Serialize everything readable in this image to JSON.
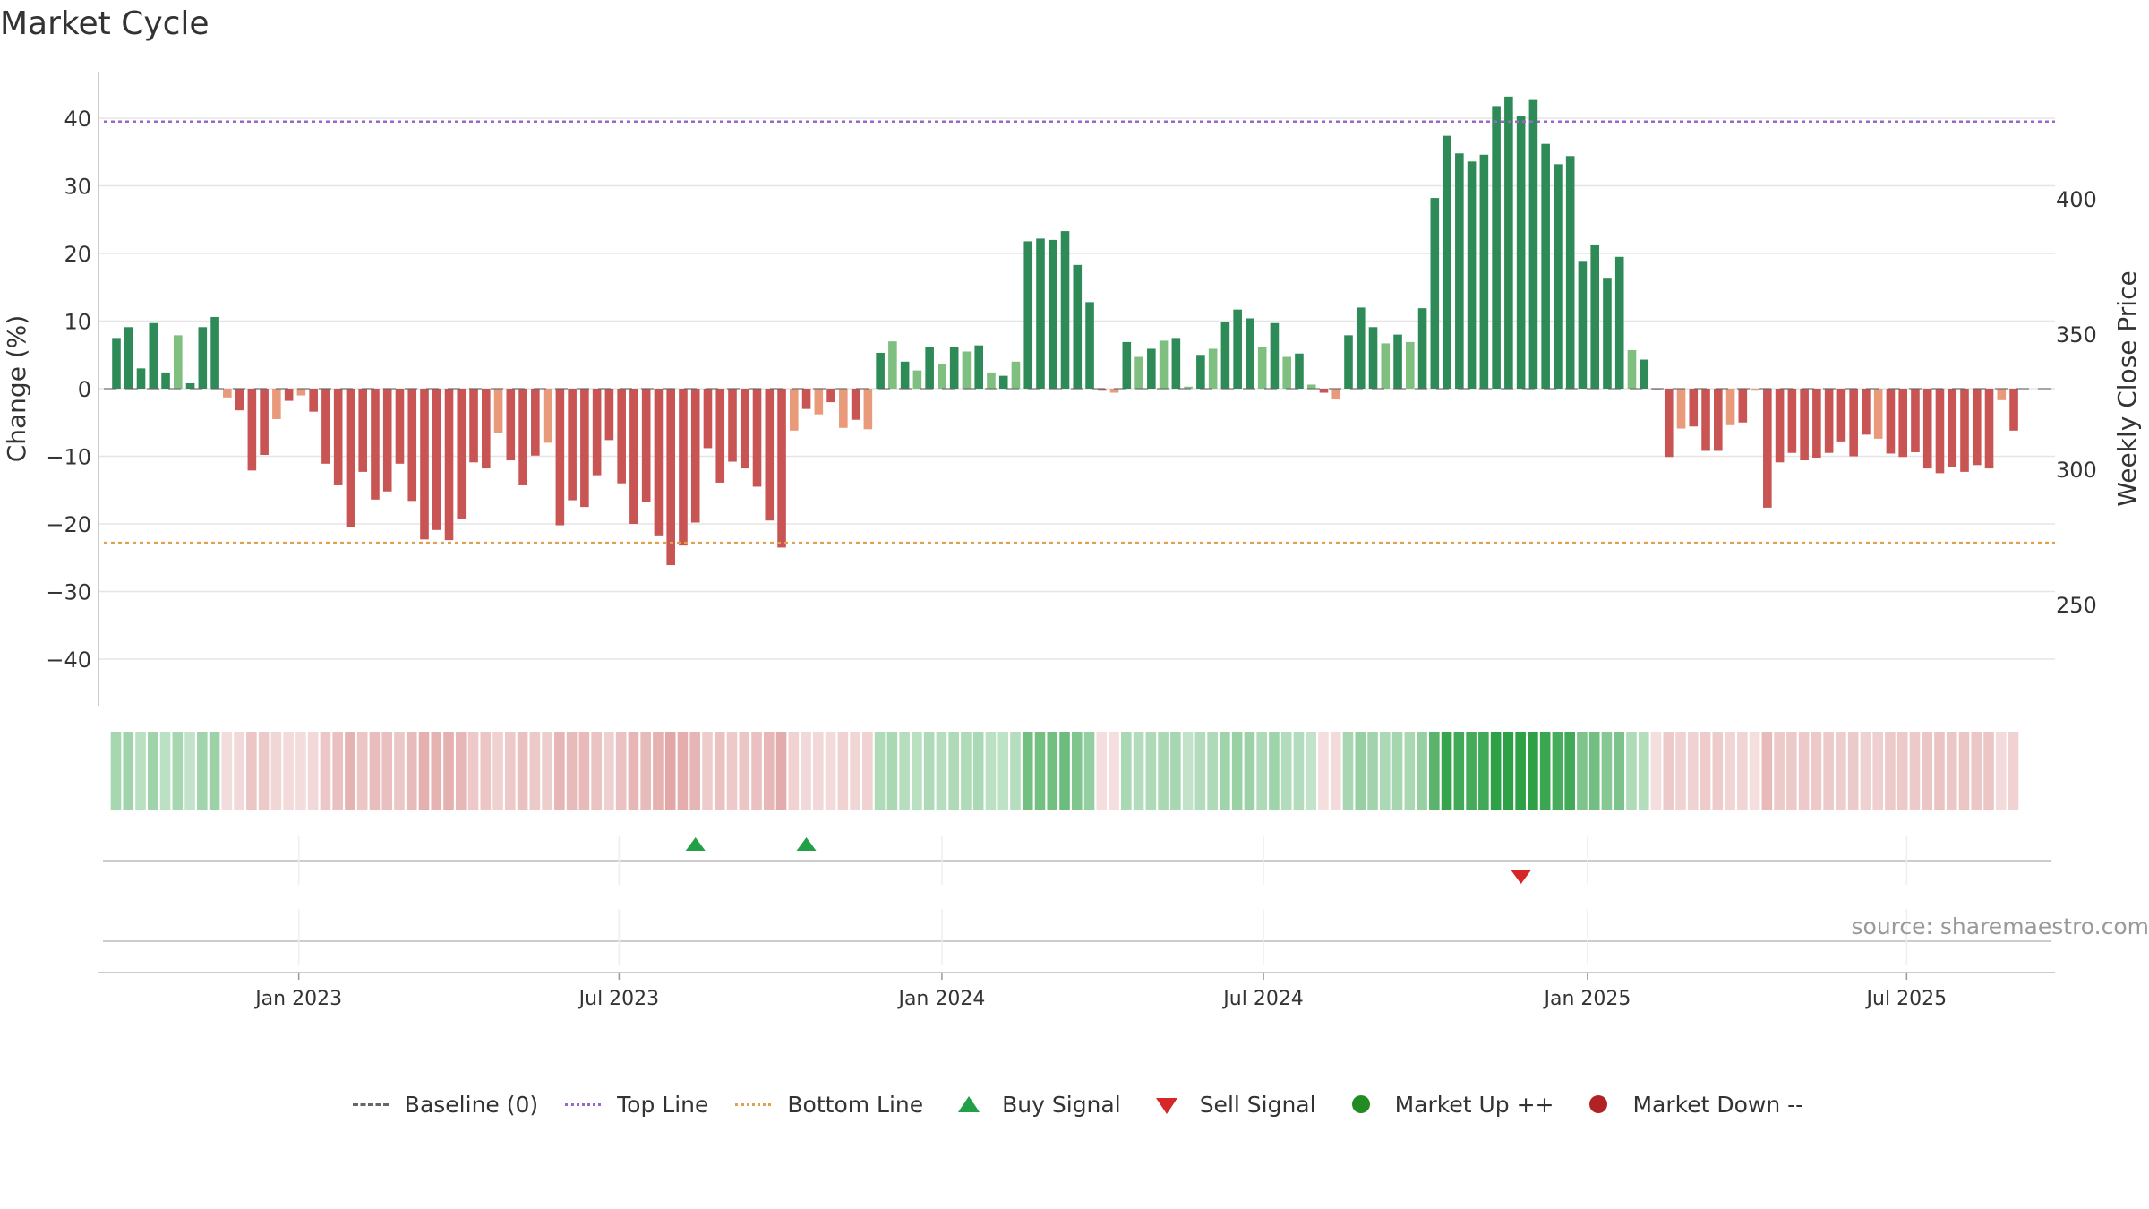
{
  "title": "Market Cycle",
  "source": "source: sharemaestro.com",
  "colors": {
    "green_dark": "#2e8b57",
    "green_light": "#7fbf7f",
    "red_dark": "#c85454",
    "red_light": "#e89a7a",
    "top_line": "#9966cc",
    "bottom_line": "#e0a050",
    "baseline": "#666666",
    "buy": "#22a048",
    "sell": "#d62728",
    "market_up": "#228b22",
    "market_down": "#b22222",
    "grid": "#e5e5e5"
  },
  "legend": [
    {
      "label": "Baseline (0)",
      "symbol": "dash",
      "color": "#666666"
    },
    {
      "label": "Top Line",
      "symbol": "dot-line",
      "color": "#9966cc"
    },
    {
      "label": "Bottom Line",
      "symbol": "dot-line",
      "color": "#e0a050"
    },
    {
      "label": "Buy Signal",
      "symbol": "tri-up",
      "color": "#22a048"
    },
    {
      "label": "Sell Signal",
      "symbol": "tri-down",
      "color": "#d62728"
    },
    {
      "label": "Market Up ++",
      "symbol": "circle",
      "color": "#228b22"
    },
    {
      "label": "Market Down --",
      "symbol": "circle",
      "color": "#b22222"
    }
  ],
  "chart_data": {
    "type": "bar",
    "title": "Market Cycle",
    "ylabel": "Change (%)",
    "y2label": "Weekly Close Price",
    "ylim": [
      -47,
      47
    ],
    "yticks": [
      40,
      30,
      20,
      10,
      0,
      -10,
      -20,
      -30,
      -40
    ],
    "ytick_labels": [
      "40",
      "30",
      "20",
      "10",
      "0",
      "−10",
      "−20",
      "−30",
      "−40"
    ],
    "y2lim": [
      210,
      450
    ],
    "y2ticks": [
      400,
      350,
      300,
      250
    ],
    "top_line": 39.5,
    "bottom_line": -22.8,
    "baseline": 0,
    "x_start_week": 0,
    "weeks_per_month": 4.348,
    "xticks": [
      {
        "label": "Jan 2023",
        "week": 14.8
      },
      {
        "label": "Jul 2023",
        "week": 40.8
      },
      {
        "label": "Jan 2024",
        "week": 67.0
      },
      {
        "label": "Jul 2024",
        "week": 93.1
      },
      {
        "label": "Jan 2025",
        "week": 119.4
      },
      {
        "label": "Jul 2025",
        "week": 145.3
      }
    ],
    "values": [
      7.5,
      9.1,
      3.0,
      9.7,
      2.4,
      7.9,
      0.8,
      9.1,
      10.6,
      -1.3,
      -3.2,
      -12.1,
      -9.8,
      -4.5,
      -1.8,
      -1.0,
      -3.4,
      -11.1,
      -14.3,
      -20.5,
      -12.3,
      -16.4,
      -15.2,
      -11.1,
      -16.6,
      -22.3,
      -20.9,
      -22.4,
      -19.2,
      -10.9,
      -11.8,
      -6.5,
      -10.6,
      -14.3,
      -9.9,
      -8.0,
      -20.2,
      -16.5,
      -17.5,
      -12.8,
      -7.6,
      -14.0,
      -20.0,
      -16.8,
      -21.7,
      -26.1,
      -23.2,
      -19.8,
      -8.8,
      -13.9,
      -10.8,
      -11.8,
      -14.5,
      -19.5,
      -23.5,
      -6.2,
      -3.0,
      -3.8,
      -2.0,
      -5.8,
      -4.6,
      -6.0,
      5.3,
      7.0,
      4.0,
      2.7,
      6.2,
      3.6,
      6.2,
      5.5,
      6.4,
      2.4,
      1.9,
      4.0,
      21.8,
      22.2,
      22.0,
      23.3,
      18.3,
      12.8,
      -0.3,
      -0.6,
      6.9,
      4.7,
      5.9,
      7.1,
      7.5,
      0.3,
      5.0,
      5.9,
      9.9,
      11.7,
      10.4,
      6.1,
      9.7,
      4.7,
      5.2,
      0.6,
      -0.6,
      -1.6,
      7.9,
      12.0,
      9.1,
      6.7,
      8.0,
      6.9,
      11.9,
      28.2,
      37.4,
      34.8,
      33.6,
      34.6,
      41.8,
      43.2,
      40.3,
      42.7,
      36.2,
      33.2,
      34.4,
      18.9,
      21.2,
      16.4,
      19.5,
      5.7,
      4.3,
      -0.1,
      -10.1,
      -5.9,
      -5.6,
      -9.2,
      -9.2,
      -5.4,
      -5.0,
      -0.3,
      -17.6,
      -10.9,
      -9.5,
      -10.6,
      -10.2,
      -9.5,
      -7.8,
      -10.0,
      -6.8,
      -7.4,
      -9.6,
      -10.1,
      -9.4,
      -11.8,
      -12.5,
      -11.6,
      -12.3,
      -11.3,
      -11.8,
      -1.7,
      -6.2
    ],
    "intensity_bar_label": "",
    "buy_signals": [
      {
        "week": 47,
        "direction": "buy"
      },
      {
        "week": 56,
        "direction": "buy"
      }
    ],
    "sell_signals": [
      {
        "week": 114,
        "direction": "sell"
      }
    ],
    "legend_position": "bottom-center"
  }
}
